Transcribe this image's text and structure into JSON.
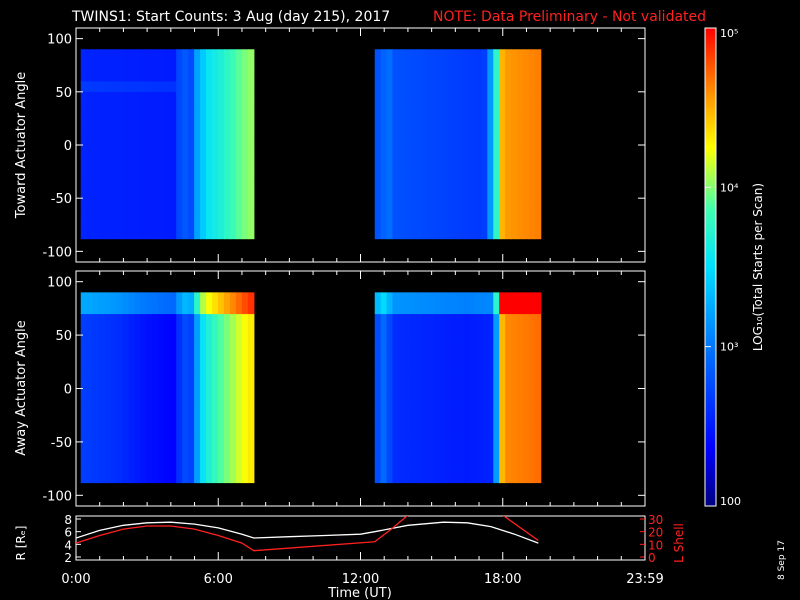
{
  "title": {
    "main": "TWINS1: Start Counts:  3 Aug (day 215), 2017",
    "note": "NOTE: Data Preliminary - Not validated",
    "note_color": "#ff2020"
  },
  "side_stamp": "8 Sep 17",
  "chart_data": [
    {
      "type": "heatmap",
      "panel": "toward",
      "ylabel": "Toward Actuator Angle",
      "ylim": [
        -110,
        110
      ],
      "yticks": [
        100,
        50,
        0,
        -50,
        -100
      ],
      "xlim_hours": [
        0,
        24
      ],
      "angle_range": [
        -88,
        90
      ],
      "data_intervals_hours": [
        [
          0.2,
          7.5
        ],
        [
          12.6,
          19.6
        ]
      ],
      "time_profile_log10": [
        [
          0.2,
          2.55
        ],
        [
          4.3,
          2.5
        ],
        [
          4.45,
          3.2
        ],
        [
          4.75,
          2.5
        ],
        [
          5.0,
          3.1
        ],
        [
          5.2,
          3.3
        ],
        [
          5.6,
          3.55
        ],
        [
          6.2,
          3.7
        ],
        [
          7.0,
          3.95
        ],
        [
          7.5,
          4.05
        ],
        [
          12.6,
          2.75
        ],
        [
          13.0,
          2.9
        ],
        [
          13.1,
          3.2
        ],
        [
          13.3,
          2.8
        ],
        [
          16.0,
          2.7
        ],
        [
          17.2,
          2.65
        ],
        [
          17.6,
          3.4
        ],
        [
          18.0,
          4.55
        ],
        [
          19.6,
          4.65
        ]
      ]
    },
    {
      "type": "heatmap",
      "panel": "away",
      "ylabel": "Away Actuator Angle",
      "ylim": [
        -110,
        110
      ],
      "yticks": [
        100,
        50,
        0,
        -50,
        -100
      ],
      "xlim_hours": [
        0,
        24
      ],
      "angle_range": [
        -88,
        90
      ],
      "data_intervals_hours": [
        [
          0.2,
          7.5
        ],
        [
          12.6,
          19.6
        ]
      ],
      "time_profile_log10": [
        [
          0.2,
          2.7
        ],
        [
          1.8,
          2.6
        ],
        [
          3.0,
          2.45
        ],
        [
          4.3,
          2.35
        ],
        [
          4.45,
          3.1
        ],
        [
          4.75,
          2.45
        ],
        [
          5.0,
          3.05
        ],
        [
          5.4,
          3.6
        ],
        [
          6.0,
          3.85
        ],
        [
          7.0,
          4.2
        ],
        [
          7.5,
          4.35
        ],
        [
          12.6,
          2.7
        ],
        [
          13.1,
          3.0
        ],
        [
          13.3,
          2.6
        ],
        [
          16.5,
          2.5
        ],
        [
          17.6,
          2.55
        ],
        [
          18.0,
          4.6
        ],
        [
          19.6,
          4.7
        ]
      ]
    },
    {
      "type": "line",
      "panel": "orbit",
      "xlabel": "Time (UT)",
      "ylabel_left": "R [Rₑ]",
      "ylabel_right": "L Shell",
      "xticks": [
        "0:00",
        "6:00",
        "12:00",
        "18:00",
        "23:59"
      ],
      "ylim_left": [
        2,
        8
      ],
      "yticks_left": [
        8,
        6,
        4,
        2
      ],
      "ylim_right": [
        0,
        30
      ],
      "yticks_right": [
        30,
        20,
        10,
        0
      ],
      "right_axis_color": "#ff2020",
      "series": [
        {
          "axis": "left",
          "color": "#ffffff",
          "x": [
            0,
            1,
            2,
            3,
            4,
            5,
            6,
            7,
            7.5,
            9,
            10.5,
            12,
            12.6,
            14,
            15.5,
            16.5,
            17.5,
            18.5,
            19.5
          ],
          "y": [
            5.0,
            6.2,
            7.0,
            7.4,
            7.5,
            7.2,
            6.6,
            5.6,
            5.0,
            5.2,
            5.4,
            5.6,
            6.0,
            7.0,
            7.5,
            7.4,
            6.8,
            5.6,
            4.2
          ]
        },
        {
          "axis": "right",
          "color": "#ff2020",
          "x": [
            0,
            1,
            2,
            3,
            4,
            5,
            6,
            7,
            7.5,
            12.6,
            13.3,
            14.0,
            18.0,
            19.5
          ],
          "y": [
            11,
            17,
            22,
            24.5,
            24.5,
            22,
            17,
            11,
            5,
            12,
            22,
            33,
            33,
            13
          ]
        }
      ]
    }
  ],
  "colorbar": {
    "label": "LOG₁₀(Total Starts per Scan)",
    "tick_labels": [
      "10⁵",
      "10⁴",
      "10³",
      "100"
    ],
    "tick_log_values": [
      5,
      4,
      3,
      2
    ],
    "range_log10": [
      2,
      5
    ]
  }
}
